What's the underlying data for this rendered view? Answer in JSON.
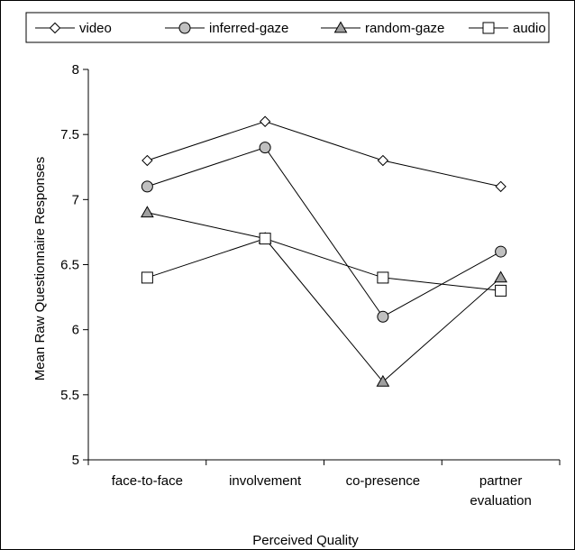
{
  "chart_data": {
    "type": "line",
    "title": "",
    "xlabel": "Perceived Quality",
    "ylabel": "Mean Raw Questionnaire Responses",
    "ylim": [
      5,
      8
    ],
    "yticks": [
      "5",
      "5.5",
      "6",
      "6.5",
      "7",
      "7.5",
      "8"
    ],
    "grid": false,
    "legend_position": "top",
    "categories": [
      [
        "face-to-face"
      ],
      [
        "involvement"
      ],
      [
        "co-presence"
      ],
      [
        "partner",
        "evaluation"
      ]
    ],
    "series": [
      {
        "name": "video",
        "marker": "diamond",
        "fill": "#ffffff",
        "values": [
          7.3,
          7.6,
          7.3,
          7.1
        ]
      },
      {
        "name": "inferred-gaze",
        "marker": "circle",
        "fill": "#c0c0c0",
        "values": [
          7.1,
          7.4,
          6.1,
          6.6
        ]
      },
      {
        "name": "random-gaze",
        "marker": "triangle",
        "fill": "#a0a0a0",
        "values": [
          6.9,
          6.7,
          5.6,
          6.4
        ]
      },
      {
        "name": "audio",
        "marker": "square",
        "fill": "#ffffff",
        "values": [
          6.4,
          6.7,
          6.4,
          6.3
        ]
      }
    ]
  }
}
